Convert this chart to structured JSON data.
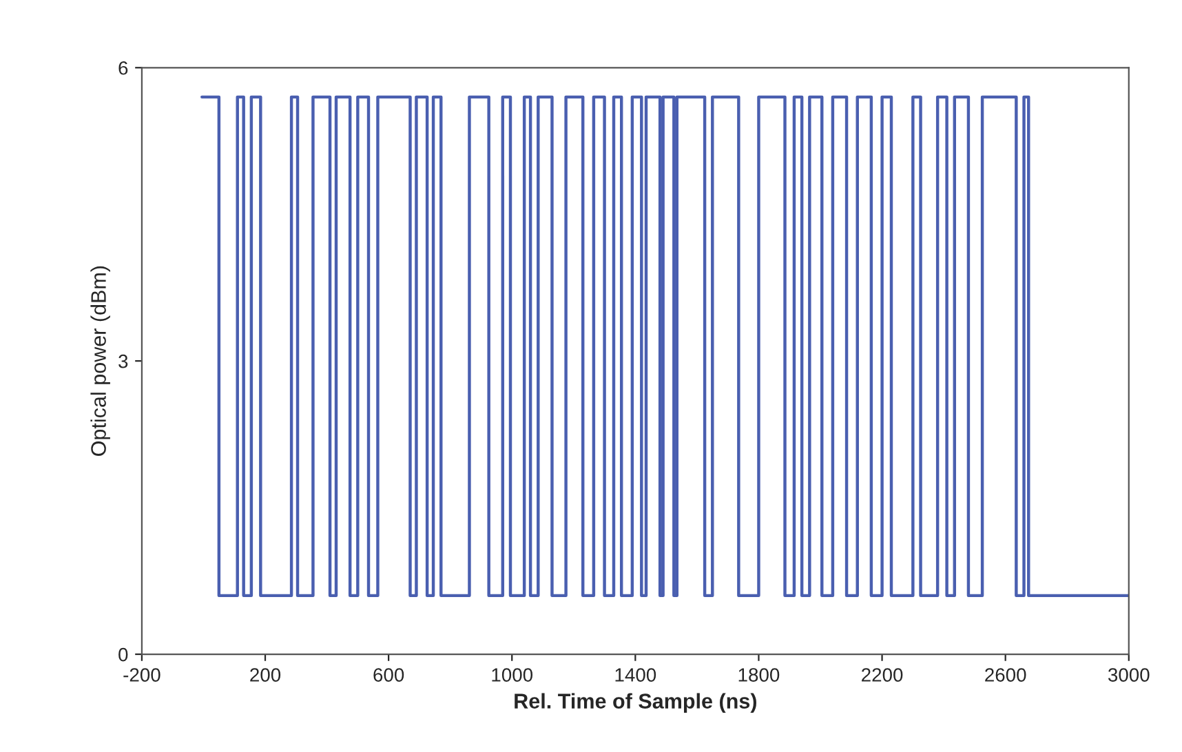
{
  "chart_data": {
    "type": "step",
    "xlabel": "Rel. Time of Sample (ns)",
    "ylabel": "Optical power (dBm)",
    "xlim": [
      -200,
      3000
    ],
    "xticks": [
      -200,
      200,
      600,
      1000,
      1400,
      1800,
      2200,
      2600,
      3000
    ],
    "ylim": [
      0,
      6
    ],
    "yticks": [
      0,
      3,
      6
    ],
    "grid": false,
    "legend": false,
    "marker": "none",
    "line_style": "solid",
    "series": [
      {
        "color": "#4a5fb0",
        "x": [
          -5,
          50,
          110,
          130,
          155,
          185,
          285,
          305,
          355,
          410,
          430,
          475,
          500,
          535,
          565,
          670,
          690,
          725,
          745,
          770,
          862,
          925,
          970,
          995,
          1040,
          1060,
          1085,
          1130,
          1175,
          1230,
          1265,
          1300,
          1330,
          1355,
          1390,
          1420,
          1435,
          1480,
          1490,
          1525,
          1535,
          1625,
          1650,
          1735,
          1800,
          1885,
          1915,
          1940,
          1965,
          2005,
          2040,
          2085,
          2120,
          2165,
          2200,
          2230,
          2300,
          2325,
          2380,
          2410,
          2435,
          2480,
          2525,
          2635,
          2660,
          2675,
          3000
        ],
        "values": [
          5.7,
          0.6,
          5.7,
          0.6,
          5.7,
          0.6,
          5.7,
          0.6,
          5.7,
          0.6,
          5.7,
          0.6,
          5.7,
          0.6,
          5.7,
          0.6,
          5.7,
          0.6,
          5.7,
          0.6,
          5.7,
          0.6,
          5.7,
          0.6,
          5.7,
          0.6,
          5.7,
          0.6,
          5.7,
          0.6,
          5.7,
          0.6,
          5.7,
          0.6,
          5.7,
          0.6,
          5.7,
          0.6,
          5.7,
          0.6,
          5.7,
          0.6,
          5.7,
          0.6,
          5.7,
          0.6,
          5.7,
          0.6,
          5.7,
          0.6,
          5.7,
          0.6,
          5.7,
          0.6,
          5.7,
          0.6,
          5.7,
          0.6,
          5.7,
          0.6,
          5.7,
          0.6,
          5.7,
          0.6,
          5.7,
          0.6,
          0.6
        ]
      }
    ]
  }
}
